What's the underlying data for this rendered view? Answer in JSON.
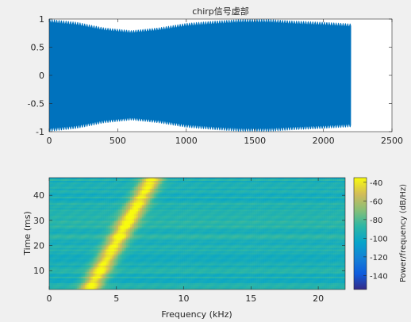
{
  "chart_data": [
    {
      "type": "line",
      "title": "chirp信号虚部",
      "xlabel": "",
      "ylabel": "",
      "xlim": [
        0,
        2500
      ],
      "ylim": [
        -1,
        1
      ],
      "xticks": [
        "0",
        "500",
        "1000",
        "1500",
        "2000",
        "2500"
      ],
      "yticks": [
        "1",
        "0.5",
        "0",
        "-0.5",
        "-1"
      ],
      "series": [
        {
          "x_start": 0,
          "x_end": 2200,
          "amplitude_envelope": [
            [
              0,
              1.0
            ],
            [
              200,
              0.95
            ],
            [
              400,
              0.85
            ],
            [
              600,
              0.8
            ],
            [
              800,
              0.85
            ],
            [
              1000,
              0.93
            ],
            [
              1200,
              0.97
            ],
            [
              1400,
              1.0
            ],
            [
              1600,
              1.0
            ],
            [
              1800,
              0.97
            ],
            [
              2000,
              0.95
            ],
            [
              2200,
              0.92
            ]
          ],
          "color": "#0072BD"
        }
      ],
      "grid": false
    },
    {
      "type": "heatmap",
      "title": "",
      "xlabel": "Frequency (kHz)",
      "ylabel": "Time (ms)",
      "xlim": [
        0,
        22
      ],
      "ylim": [
        2.5,
        47
      ],
      "xticks": [
        "0",
        "5",
        "10",
        "15",
        "20"
      ],
      "yticks": [
        "40",
        "30",
        "20",
        "10"
      ],
      "ridge": {
        "start": [
          3,
          2.5
        ],
        "end": [
          7.7,
          47
        ]
      },
      "colorbar": {
        "label": "Power/frequency (dB/Hz)",
        "range": [
          -155,
          -35
        ],
        "ticks": [
          "-40",
          "-60",
          "-80",
          "-100",
          "-120",
          "-140"
        ],
        "colormap": "parula"
      }
    }
  ]
}
